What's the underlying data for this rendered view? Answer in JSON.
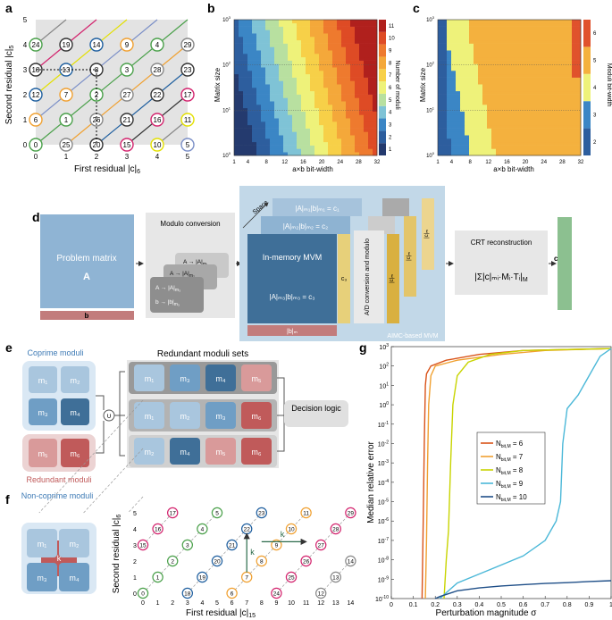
{
  "colors": {
    "blue_light": "#a9c6de",
    "blue_mid": "#6f9ec5",
    "blue_dark": "#3f6f98",
    "blue_bg": "#c6dbeb",
    "red_light": "#d99a9a",
    "red_dark": "#c05a5a",
    "gray_bg": "#e6e6e6",
    "green": "#8cc090"
  },
  "panel_a": {
    "label": "a",
    "xlabel": "First residual |c|",
    "xlabel_sub": "6",
    "ylabel": "Second residual |c|",
    "ylabel_sub": "5",
    "xticks": [
      "0",
      "1",
      "2",
      "3",
      "4",
      "5"
    ],
    "yticks": [
      "0",
      "1",
      "2",
      "3",
      "4",
      "5"
    ],
    "nodes": [
      {
        "c": 0,
        "r": 0,
        "v": "0",
        "col": "#4aa04a"
      },
      {
        "c": 1,
        "r": 0,
        "v": "25",
        "col": "#888"
      },
      {
        "c": 2,
        "r": 0,
        "v": "20",
        "col": "#333"
      },
      {
        "c": 3,
        "r": 0,
        "v": "15",
        "col": "#d3246e"
      },
      {
        "c": 4,
        "r": 0,
        "v": "10",
        "col": "#e3e000"
      },
      {
        "c": 5,
        "r": 0,
        "v": "5",
        "col": "#7b8fc7"
      },
      {
        "c": 0,
        "r": 1,
        "v": "6",
        "col": "#f0a030"
      },
      {
        "c": 1,
        "r": 1,
        "v": "1",
        "col": "#4aa04a"
      },
      {
        "c": 2,
        "r": 1,
        "v": "26",
        "col": "#888"
      },
      {
        "c": 3,
        "r": 1,
        "v": "21",
        "col": "#333"
      },
      {
        "c": 4,
        "r": 1,
        "v": "16",
        "col": "#d3246e"
      },
      {
        "c": 5,
        "r": 1,
        "v": "11",
        "col": "#e3e000"
      },
      {
        "c": 0,
        "r": 2,
        "v": "12",
        "col": "#1f5f9f"
      },
      {
        "c": 1,
        "r": 2,
        "v": "7",
        "col": "#f0a030"
      },
      {
        "c": 2,
        "r": 2,
        "v": "2",
        "col": "#4aa04a"
      },
      {
        "c": 3,
        "r": 2,
        "v": "27",
        "col": "#888"
      },
      {
        "c": 4,
        "r": 2,
        "v": "22",
        "col": "#333"
      },
      {
        "c": 5,
        "r": 2,
        "v": "17",
        "col": "#d3246e"
      },
      {
        "c": 0,
        "r": 3,
        "v": "18",
        "col": "#333"
      },
      {
        "c": 1,
        "r": 3,
        "v": "13",
        "col": "#1f5f9f"
      },
      {
        "c": 2,
        "r": 3,
        "v": "8",
        "col": "#333"
      },
      {
        "c": 3,
        "r": 3,
        "v": "3",
        "col": "#4aa04a"
      },
      {
        "c": 4,
        "r": 3,
        "v": "28",
        "col": "#888"
      },
      {
        "c": 5,
        "r": 3,
        "v": "23",
        "col": "#333"
      },
      {
        "c": 0,
        "r": 4,
        "v": "24",
        "col": "#4aa04a"
      },
      {
        "c": 1,
        "r": 4,
        "v": "19",
        "col": "#333"
      },
      {
        "c": 2,
        "r": 4,
        "v": "14",
        "col": "#1f5f9f"
      },
      {
        "c": 3,
        "r": 4,
        "v": "9",
        "col": "#f0a030"
      },
      {
        "c": 4,
        "r": 4,
        "v": "4",
        "col": "#4aa04a"
      },
      {
        "c": 5,
        "r": 4,
        "v": "29",
        "col": "#888"
      }
    ]
  },
  "panel_b": {
    "label": "b",
    "ylabel": "Matrix size",
    "xlabel": "a×b bit-width",
    "xticks": [
      "1",
      "4",
      "8",
      "12",
      "16",
      "20",
      "24",
      "28",
      "32"
    ],
    "yticks": [
      "10",
      "10",
      "10",
      "10"
    ],
    "ytick_exp": [
      "0",
      "1",
      "2",
      "3"
    ],
    "cbar_label": "Number of moduli",
    "cbar_ticks": [
      "1",
      "2",
      "3",
      "4",
      "5",
      "6",
      "7",
      "8",
      "9",
      "10",
      "11"
    ]
  },
  "panel_c": {
    "label": "c",
    "ylabel": "Matrix size",
    "xlabel": "a×b bit-width",
    "xticks": [
      "1",
      "4",
      "8",
      "12",
      "16",
      "20",
      "24",
      "28",
      "32"
    ],
    "yticks": [
      "10",
      "10",
      "10",
      "10"
    ],
    "ytick_exp": [
      "0",
      "1",
      "2",
      "3"
    ],
    "cbar_label": "Moduli bit-width",
    "cbar_ticks": [
      "2",
      "3",
      "4",
      "5",
      "6"
    ]
  },
  "panel_d": {
    "label": "d",
    "problem_title": "Problem matrix",
    "problem_A": "A",
    "problem_b": "b",
    "modulo_title": "Modulo conversion",
    "card1": "A → |A|",
    "card1_sub": "m₁",
    "card2": "A → |A|",
    "card2_sub": "m₂",
    "card3a": "A → |A|",
    "card3a_sub": "m₃",
    "card3b": "b → |b|",
    "card3b_sub": "m₃",
    "space": "Space",
    "c1_eq": "|A|ₘ₁|b|ₘ₁ = c₁",
    "c2_eq": "|A|ₘ₂|b|ₘ₂ = c₂",
    "mvm_title": "In-memory MVM",
    "c3_eq": "|A|ₘ₃|b|ₘ₃ = c₃",
    "c3_label": "c₃",
    "ad_label": "A/D conversion and modulo",
    "ci1": "|c|ₘ",
    "ci2": "|c|ₘ",
    "ci3": "|c|ₘ",
    "bm_label": "|b|ₘ",
    "aimc_label": "AIMC-based MVM",
    "crt_title": "CRT reconstruction",
    "crt_formula": "|Σ|c|ₘᵢ·Mᵢ·Tᵢ|",
    "crt_sub": "M",
    "output_c": "c"
  },
  "panel_e": {
    "label": "e",
    "coprime_title": "Coprime moduli",
    "redundant_title": "Redundant moduli",
    "sets_title": "Redundant moduli sets",
    "union": "∪",
    "decision": "Decision logic",
    "coprime": [
      "m₁",
      "m₂",
      "m₃",
      "m₄"
    ],
    "redundant": [
      "m₅",
      "m₆"
    ],
    "row1": [
      "m₁",
      "m₃",
      "m₄",
      "m₅"
    ],
    "row2": [
      "m₁",
      "m₂",
      "m₃",
      "m₆"
    ],
    "row3": [
      "m₂",
      "m₄",
      "m₅",
      "m₆"
    ]
  },
  "panel_f": {
    "label": "f",
    "title": "Non-coprime moduli",
    "k_center": "k",
    "moduli": [
      "m₁",
      "m₂",
      "m₃",
      "m₄"
    ],
    "xlabel": "First residual |c|",
    "xlabel_sub": "15",
    "ylabel": "Second residual |c|",
    "ylabel_sub": "6",
    "xticks": [
      "0",
      "1",
      "2",
      "3",
      "4",
      "5",
      "6",
      "7",
      "8",
      "9",
      "10",
      "11",
      "12",
      "13",
      "14"
    ],
    "yticks": [
      "0",
      "1",
      "2",
      "3",
      "4",
      "5"
    ],
    "k_vert": "k",
    "k_horiz": "k",
    "nodes": [
      {
        "x": 0,
        "y": 0,
        "v": "0",
        "col": "#4aa04a"
      },
      {
        "x": 1,
        "y": 1,
        "v": "1",
        "col": "#4aa04a"
      },
      {
        "x": 2,
        "y": 2,
        "v": "2",
        "col": "#4aa04a"
      },
      {
        "x": 3,
        "y": 3,
        "v": "3",
        "col": "#4aa04a"
      },
      {
        "x": 4,
        "y": 4,
        "v": "4",
        "col": "#4aa04a"
      },
      {
        "x": 5,
        "y": 5,
        "v": "5",
        "col": "#4aa04a"
      },
      {
        "x": 6,
        "y": 0,
        "v": "6",
        "col": "#f0a030"
      },
      {
        "x": 7,
        "y": 1,
        "v": "7",
        "col": "#f0a030"
      },
      {
        "x": 8,
        "y": 2,
        "v": "8",
        "col": "#f0a030"
      },
      {
        "x": 9,
        "y": 3,
        "v": "9",
        "col": "#f0a030"
      },
      {
        "x": 10,
        "y": 4,
        "v": "10",
        "col": "#f0a030"
      },
      {
        "x": 11,
        "y": 5,
        "v": "11",
        "col": "#f0a030"
      },
      {
        "x": 12,
        "y": 0,
        "v": "12",
        "col": "#888"
      },
      {
        "x": 13,
        "y": 1,
        "v": "13",
        "col": "#888"
      },
      {
        "x": 14,
        "y": 2,
        "v": "14",
        "col": "#888"
      },
      {
        "x": 0,
        "y": 3,
        "v": "15",
        "col": "#d3246e"
      },
      {
        "x": 1,
        "y": 4,
        "v": "16",
        "col": "#d3246e"
      },
      {
        "x": 2,
        "y": 5,
        "v": "17",
        "col": "#d3246e"
      },
      {
        "x": 3,
        "y": 0,
        "v": "18",
        "col": "#1f5f9f"
      },
      {
        "x": 4,
        "y": 1,
        "v": "19",
        "col": "#1f5f9f"
      },
      {
        "x": 5,
        "y": 2,
        "v": "20",
        "col": "#1f5f9f"
      },
      {
        "x": 6,
        "y": 3,
        "v": "21",
        "col": "#1f5f9f"
      },
      {
        "x": 7,
        "y": 4,
        "v": "22",
        "col": "#1f5f9f"
      },
      {
        "x": 8,
        "y": 5,
        "v": "23",
        "col": "#1f5f9f"
      },
      {
        "x": 9,
        "y": 0,
        "v": "24",
        "col": "#d3246e"
      },
      {
        "x": 10,
        "y": 1,
        "v": "25",
        "col": "#d3246e"
      },
      {
        "x": 11,
        "y": 2,
        "v": "26",
        "col": "#d3246e"
      },
      {
        "x": 12,
        "y": 3,
        "v": "27",
        "col": "#d3246e"
      },
      {
        "x": 13,
        "y": 4,
        "v": "28",
        "col": "#d3246e"
      },
      {
        "x": 14,
        "y": 5,
        "v": "29",
        "col": "#d3246e"
      }
    ]
  },
  "chart_data": {
    "type": "line",
    "label": "g",
    "xlabel": "Perturbation magnitude σ",
    "ylabel": "Median relative error",
    "xlim": [
      0,
      1
    ],
    "ylim_exp": [
      -10,
      3
    ],
    "xticks": [
      "0",
      "0.1",
      "0.2",
      "0.3",
      "0.4",
      "0.5",
      "0.6",
      "0.7",
      "0.8",
      "0.9",
      "1"
    ],
    "ytick_base": "10",
    "ytick_exps": [
      "-10",
      "-9",
      "-8",
      "-7",
      "-6",
      "-5",
      "-4",
      "-3",
      "-2",
      "-1",
      "0",
      "1",
      "2",
      "3"
    ],
    "legend_title": "N",
    "series": [
      {
        "name": "N",
        "sub": "bit,M",
        "eq": "= 6",
        "color": "#d95319",
        "x": [
          0.14,
          0.145,
          0.15,
          0.155,
          0.16,
          0.18,
          0.25,
          0.4,
          0.6,
          1.0
        ],
        "y": [
          -10,
          -6,
          -2,
          1,
          1.6,
          2,
          2.3,
          2.6,
          2.8,
          2.9
        ]
      },
      {
        "name": "N",
        "sub": "bit,M",
        "eq": "= 7",
        "color": "#f0a030",
        "x": [
          0.155,
          0.16,
          0.165,
          0.17,
          0.18,
          0.2,
          0.3,
          0.5,
          0.7,
          1.0
        ],
        "y": [
          -10,
          -7,
          -3,
          0,
          1.5,
          2,
          2.3,
          2.6,
          2.8,
          2.9
        ]
      },
      {
        "name": "N",
        "sub": "bit,M",
        "eq": "= 8",
        "color": "#c8d400",
        "x": [
          0.24,
          0.25,
          0.26,
          0.27,
          0.28,
          0.3,
          0.35,
          0.45,
          0.6,
          1.0
        ],
        "y": [
          -10,
          -8,
          -6.5,
          -3,
          0,
          1.5,
          2.2,
          2.6,
          2.8,
          2.9
        ]
      },
      {
        "name": "N",
        "sub": "bit,M",
        "eq": "= 9",
        "color": "#4bb8d8",
        "x": [
          0.22,
          0.3,
          0.45,
          0.6,
          0.7,
          0.75,
          0.77,
          0.78,
          0.8,
          0.85,
          0.9,
          0.95,
          1.0
        ],
        "y": [
          -10,
          -9.2,
          -8.5,
          -7.8,
          -7,
          -6,
          -5,
          -2,
          -0.2,
          0.5,
          1.5,
          2.5,
          2.9
        ]
      },
      {
        "name": "N",
        "sub": "bit,M",
        "eq": "= 10",
        "color": "#1f4f88",
        "x": [
          0.2,
          0.22,
          0.3,
          0.4,
          0.5,
          0.6,
          0.7,
          0.8,
          0.9,
          1.0
        ],
        "y": [
          -10,
          -9.9,
          -9.6,
          -9.45,
          -9.35,
          -9.28,
          -9.22,
          -9.18,
          -9.12,
          -9.08
        ]
      }
    ]
  }
}
